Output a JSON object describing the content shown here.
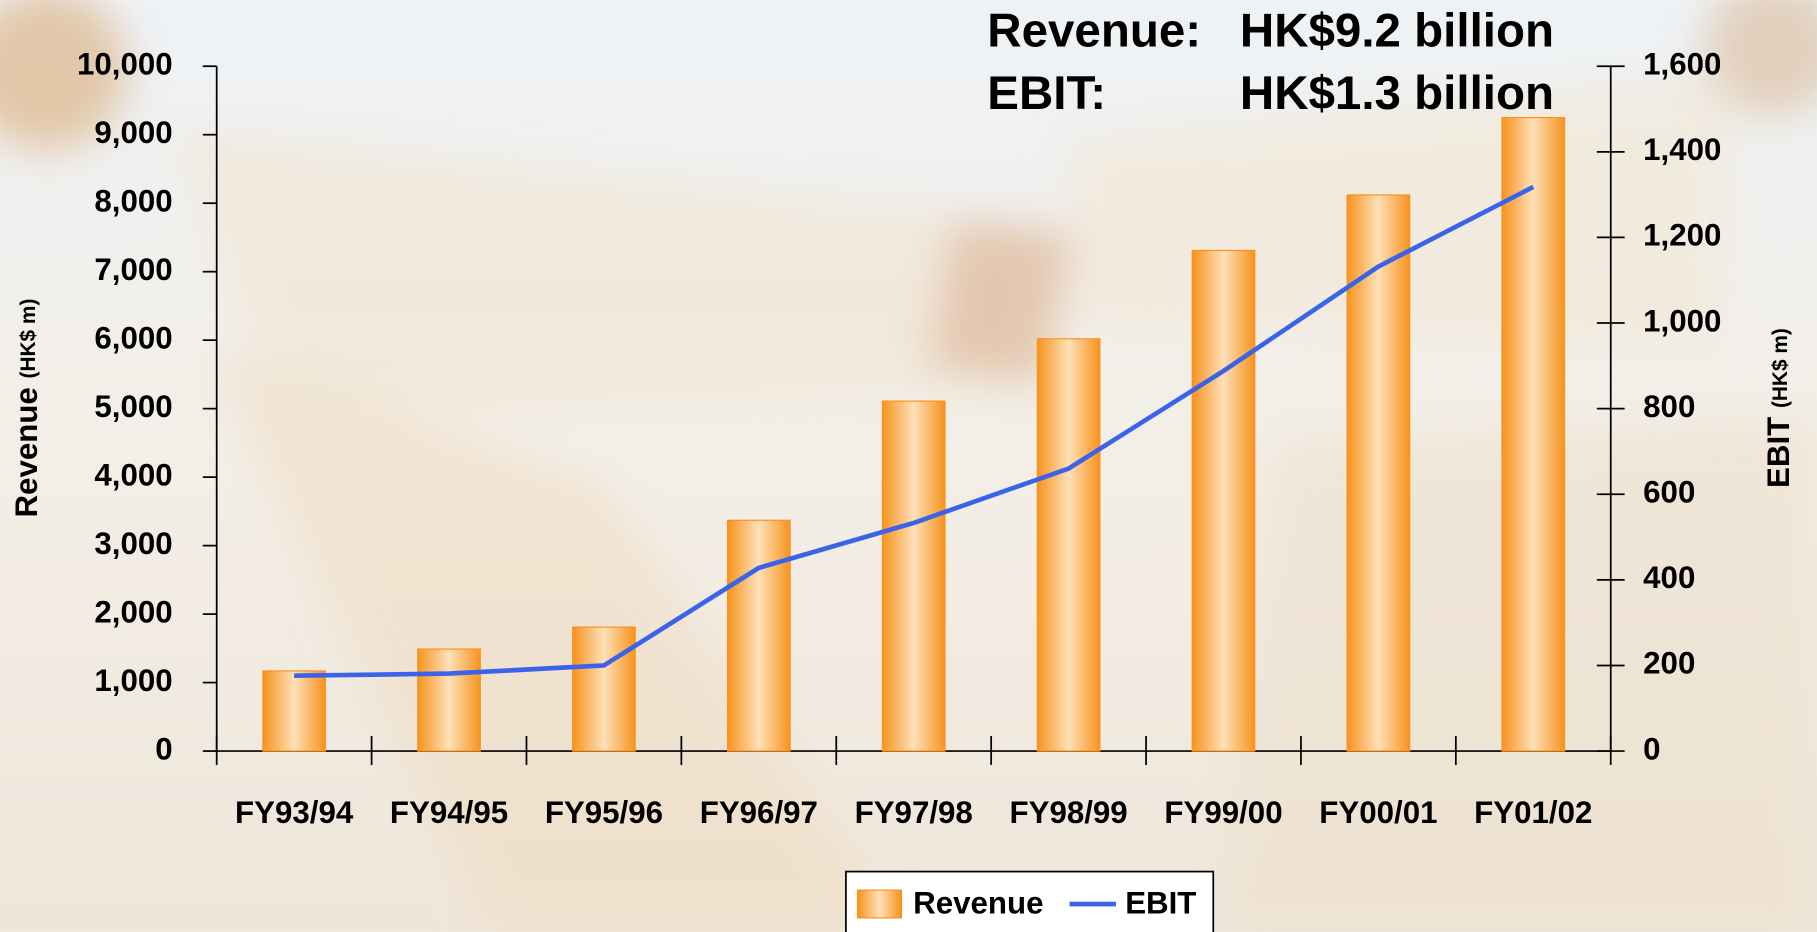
{
  "chart_data": {
    "type": "bar",
    "annotations": [
      "Revenue:",
      "HK$9.2 billion",
      "EBIT:",
      "HK$1.3 billion"
    ],
    "y_label": "Revenue",
    "y_label_unit": "(HK$ m)",
    "y2_label": "EBIT",
    "y2_label_unit": "(HK$ m)",
    "categories": [
      "FY93/94",
      "FY94/95",
      "FY95/96",
      "FY96/97",
      "FY97/98",
      "FY98/99",
      "FY99/00",
      "FY00/01",
      "FY01/02"
    ],
    "series": [
      {
        "name": "Revenue",
        "type": "bar",
        "color": "#f7931e",
        "values": [
          1170,
          1490,
          1810,
          3370,
          5110,
          6020,
          7310,
          8120,
          9250
        ]
      },
      {
        "name": "EBIT",
        "type": "line",
        "axis": "y2",
        "color": "#3b63e8",
        "values": [
          176,
          181,
          200,
          428,
          533,
          660,
          888,
          1132,
          1318
        ]
      }
    ],
    "ylim": [
      0,
      10000
    ],
    "yticks": [
      0,
      {
        "value": 1000,
        "label": "1,000"
      },
      {
        "value": 2000,
        "label": "2,000"
      },
      {
        "value": 3000,
        "label": "3,000"
      },
      {
        "value": 4000,
        "label": "4,000"
      },
      {
        "value": 5000,
        "label": "5,000"
      },
      {
        "value": 6000,
        "label": "6,000"
      },
      {
        "value": 7000,
        "label": "7,000"
      },
      {
        "value": 8000,
        "label": "8,000"
      },
      {
        "value": 9000,
        "label": "9,000"
      },
      {
        "value": 10000,
        "label": "10,000"
      }
    ],
    "y2lim": [
      0,
      1600
    ],
    "y2ticks": [
      0,
      200,
      400,
      600,
      800,
      {
        "value": 1000,
        "label": "1,000"
      },
      {
        "value": 1200,
        "label": "1,200"
      },
      {
        "value": 1400,
        "label": "1,400"
      },
      {
        "value": 1600,
        "label": "1,600"
      }
    ],
    "legend": "bottom"
  }
}
